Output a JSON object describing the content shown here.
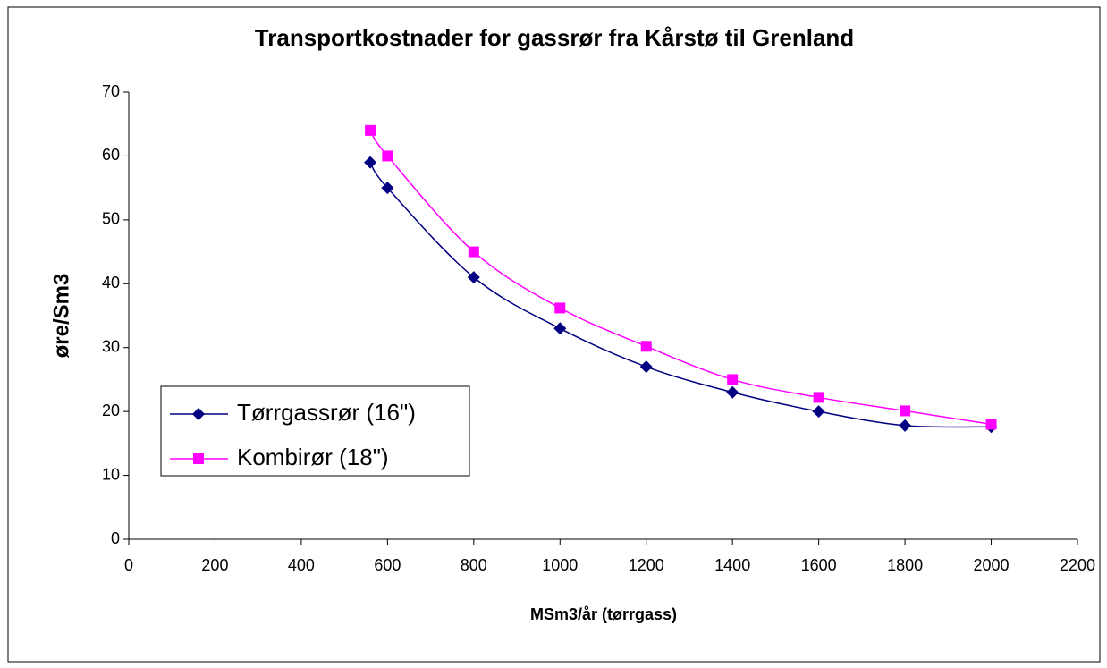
{
  "chart_data": {
    "type": "line",
    "title": "Transportkostnader for gassrør fra Kårstø til Grenland",
    "xlabel": "MSm3/år (tørrgass)",
    "ylabel": "øre/Sm3",
    "x": [
      560,
      600,
      800,
      1000,
      1200,
      1400,
      1600,
      1800,
      2000
    ],
    "series": [
      {
        "name": "Tørrgassrør (16\")",
        "color": "#000080",
        "marker": "diamond",
        "values": [
          59,
          55,
          41,
          33,
          27,
          23,
          20,
          17.8,
          17.6
        ]
      },
      {
        "name": "Kombirør (18\")",
        "color": "#ff00ff",
        "marker": "square",
        "values": [
          64,
          60,
          45,
          36.2,
          30.2,
          25,
          22.2,
          20.1,
          18
        ]
      }
    ],
    "xlim": [
      0,
      2200
    ],
    "xticks": [
      0,
      200,
      400,
      600,
      800,
      1000,
      1200,
      1400,
      1600,
      1800,
      2000,
      2200
    ],
    "ylim": [
      0,
      70
    ],
    "yticks": [
      0,
      10,
      20,
      30,
      40,
      50,
      60,
      70
    ],
    "grid": false,
    "legend": "left",
    "smooth": true
  }
}
